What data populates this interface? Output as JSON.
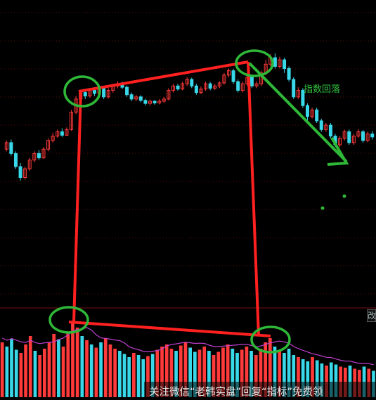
{
  "chart_data": {
    "type": "candlestick",
    "annotation_text": "指数回落",
    "watermark": "关注微信“老韩实盘”回复“指标”免费领",
    "edge_glyph": "改",
    "colors": {
      "background": "#000000",
      "up": "#ff3a3a",
      "down": "#39d8e8",
      "marker_red": "#ff2020",
      "marker_green": "#2fb838",
      "grid": "#7a1010",
      "volume_ma": "#c040d0"
    },
    "price_series": [
      {
        "o": 1840,
        "c": 1855,
        "h": 1860,
        "l": 1835
      },
      {
        "o": 1855,
        "c": 1830,
        "h": 1862,
        "l": 1825
      },
      {
        "o": 1830,
        "c": 1800,
        "h": 1835,
        "l": 1795
      },
      {
        "o": 1800,
        "c": 1775,
        "h": 1808,
        "l": 1768
      },
      {
        "o": 1775,
        "c": 1795,
        "h": 1800,
        "l": 1770
      },
      {
        "o": 1795,
        "c": 1815,
        "h": 1820,
        "l": 1790
      },
      {
        "o": 1815,
        "c": 1830,
        "h": 1835,
        "l": 1810
      },
      {
        "o": 1830,
        "c": 1820,
        "h": 1838,
        "l": 1815
      },
      {
        "o": 1820,
        "c": 1840,
        "h": 1845,
        "l": 1818
      },
      {
        "o": 1840,
        "c": 1860,
        "h": 1865,
        "l": 1835
      },
      {
        "o": 1860,
        "c": 1870,
        "h": 1878,
        "l": 1855
      },
      {
        "o": 1870,
        "c": 1880,
        "h": 1885,
        "l": 1866
      },
      {
        "o": 1880,
        "c": 1872,
        "h": 1888,
        "l": 1868
      },
      {
        "o": 1872,
        "c": 1885,
        "h": 1890,
        "l": 1870
      },
      {
        "o": 1885,
        "c": 1925,
        "h": 1930,
        "l": 1882
      },
      {
        "o": 1925,
        "c": 1955,
        "h": 1962,
        "l": 1920
      },
      {
        "o": 1955,
        "c": 1970,
        "h": 1975,
        "l": 1950
      },
      {
        "o": 1970,
        "c": 1962,
        "h": 1978,
        "l": 1955
      },
      {
        "o": 1962,
        "c": 1975,
        "h": 1980,
        "l": 1958
      },
      {
        "o": 1975,
        "c": 1968,
        "h": 1982,
        "l": 1962
      },
      {
        "o": 1968,
        "c": 1980,
        "h": 1986,
        "l": 1965
      },
      {
        "o": 1980,
        "c": 1960,
        "h": 1985,
        "l": 1955
      },
      {
        "o": 1960,
        "c": 1975,
        "h": 1980,
        "l": 1956
      },
      {
        "o": 1975,
        "c": 1985,
        "h": 1990,
        "l": 1970
      },
      {
        "o": 1985,
        "c": 1990,
        "h": 1996,
        "l": 1980
      },
      {
        "o": 1990,
        "c": 1982,
        "h": 1995,
        "l": 1978
      },
      {
        "o": 1982,
        "c": 1965,
        "h": 1986,
        "l": 1960
      },
      {
        "o": 1965,
        "c": 1955,
        "h": 1970,
        "l": 1950
      },
      {
        "o": 1955,
        "c": 1960,
        "h": 1965,
        "l": 1950
      },
      {
        "o": 1960,
        "c": 1952,
        "h": 1964,
        "l": 1948
      },
      {
        "o": 1952,
        "c": 1945,
        "h": 1956,
        "l": 1940
      },
      {
        "o": 1945,
        "c": 1950,
        "h": 1954,
        "l": 1940
      },
      {
        "o": 1950,
        "c": 1946,
        "h": 1953,
        "l": 1942
      },
      {
        "o": 1946,
        "c": 1950,
        "h": 1955,
        "l": 1943
      },
      {
        "o": 1950,
        "c": 1955,
        "h": 1960,
        "l": 1946
      },
      {
        "o": 1955,
        "c": 1975,
        "h": 1980,
        "l": 1952
      },
      {
        "o": 1975,
        "c": 1985,
        "h": 1990,
        "l": 1970
      },
      {
        "o": 1985,
        "c": 1978,
        "h": 1990,
        "l": 1974
      },
      {
        "o": 1978,
        "c": 1990,
        "h": 1995,
        "l": 1975
      },
      {
        "o": 1990,
        "c": 2000,
        "h": 2005,
        "l": 1985
      },
      {
        "o": 2000,
        "c": 1985,
        "h": 2004,
        "l": 1980
      },
      {
        "o": 1985,
        "c": 1970,
        "h": 1990,
        "l": 1965
      },
      {
        "o": 1970,
        "c": 1978,
        "h": 1984,
        "l": 1966
      },
      {
        "o": 1978,
        "c": 1990,
        "h": 1995,
        "l": 1974
      },
      {
        "o": 1990,
        "c": 1980,
        "h": 1994,
        "l": 1975
      },
      {
        "o": 1980,
        "c": 1985,
        "h": 1990,
        "l": 1976
      },
      {
        "o": 1985,
        "c": 1992,
        "h": 1996,
        "l": 1980
      },
      {
        "o": 1992,
        "c": 2010,
        "h": 2015,
        "l": 1988
      },
      {
        "o": 2010,
        "c": 2020,
        "h": 2025,
        "l": 2005
      },
      {
        "o": 2020,
        "c": 1995,
        "h": 2024,
        "l": 1990
      },
      {
        "o": 1995,
        "c": 1975,
        "h": 2000,
        "l": 1970
      },
      {
        "o": 1975,
        "c": 1990,
        "h": 1995,
        "l": 1970
      },
      {
        "o": 1990,
        "c": 2005,
        "h": 2010,
        "l": 1985
      },
      {
        "o": 2005,
        "c": 1985,
        "h": 2010,
        "l": 1980
      },
      {
        "o": 1985,
        "c": 1990,
        "h": 1996,
        "l": 1980
      },
      {
        "o": 1990,
        "c": 2015,
        "h": 2020,
        "l": 1985
      },
      {
        "o": 2015,
        "c": 2035,
        "h": 2045,
        "l": 2010
      },
      {
        "o": 2035,
        "c": 2050,
        "h": 2058,
        "l": 2030
      },
      {
        "o": 2050,
        "c": 2030,
        "h": 2060,
        "l": 2025
      },
      {
        "o": 2030,
        "c": 2045,
        "h": 2052,
        "l": 2025
      },
      {
        "o": 2045,
        "c": 2025,
        "h": 2050,
        "l": 2015
      },
      {
        "o": 2025,
        "c": 2000,
        "h": 2030,
        "l": 1995
      },
      {
        "o": 2000,
        "c": 1960,
        "h": 2005,
        "l": 1955
      },
      {
        "o": 1960,
        "c": 1975,
        "h": 1982,
        "l": 1955
      },
      {
        "o": 1975,
        "c": 1940,
        "h": 1980,
        "l": 1935
      },
      {
        "o": 1940,
        "c": 1915,
        "h": 1945,
        "l": 1905
      },
      {
        "o": 1915,
        "c": 1930,
        "h": 1935,
        "l": 1910
      },
      {
        "o": 1930,
        "c": 1905,
        "h": 1935,
        "l": 1900
      },
      {
        "o": 1905,
        "c": 1885,
        "h": 1910,
        "l": 1880
      },
      {
        "o": 1885,
        "c": 1895,
        "h": 1900,
        "l": 1880
      },
      {
        "o": 1895,
        "c": 1870,
        "h": 1900,
        "l": 1865
      },
      {
        "o": 1870,
        "c": 1850,
        "h": 1875,
        "l": 1845
      },
      {
        "o": 1850,
        "c": 1865,
        "h": 1870,
        "l": 1845
      },
      {
        "o": 1865,
        "c": 1880,
        "h": 1885,
        "l": 1860
      },
      {
        "o": 1880,
        "c": 1855,
        "h": 1885,
        "l": 1850
      },
      {
        "o": 1855,
        "c": 1870,
        "h": 1875,
        "l": 1850
      },
      {
        "o": 1870,
        "c": 1880,
        "h": 1886,
        "l": 1866
      },
      {
        "o": 1880,
        "c": 1860,
        "h": 1884,
        "l": 1855
      },
      {
        "o": 1860,
        "c": 1875,
        "h": 1880,
        "l": 1856
      },
      {
        "o": 1875,
        "c": 1868,
        "h": 1882,
        "l": 1862
      }
    ],
    "volume_series": [
      52,
      48,
      55,
      45,
      42,
      50,
      58,
      44,
      40,
      46,
      52,
      60,
      55,
      48,
      62,
      70,
      66,
      58,
      54,
      50,
      47,
      52,
      56,
      50,
      46,
      44,
      41,
      38,
      42,
      40,
      36,
      39,
      41,
      45,
      48,
      50,
      46,
      44,
      49,
      52,
      47,
      43,
      45,
      48,
      44,
      40,
      43,
      47,
      50,
      46,
      42,
      45,
      48,
      44,
      40,
      46,
      52,
      56,
      48,
      44,
      42,
      46,
      40,
      38,
      36,
      34,
      38,
      35,
      32,
      30,
      33,
      31,
      29,
      28,
      30,
      27,
      26,
      29,
      27,
      25
    ],
    "volume_up": [
      true,
      false,
      false,
      false,
      true,
      true,
      true,
      false,
      true,
      true,
      true,
      true,
      false,
      true,
      true,
      true,
      true,
      false,
      true,
      false,
      true,
      false,
      true,
      true,
      true,
      false,
      false,
      false,
      true,
      false,
      false,
      true,
      false,
      true,
      true,
      true,
      true,
      false,
      true,
      true,
      false,
      false,
      true,
      true,
      false,
      true,
      true,
      true,
      true,
      false,
      false,
      true,
      true,
      false,
      true,
      true,
      true,
      true,
      false,
      true,
      false,
      false,
      false,
      true,
      false,
      false,
      true,
      false,
      false,
      true,
      false,
      false,
      true,
      true,
      false,
      true,
      true,
      false,
      true,
      false
    ]
  }
}
